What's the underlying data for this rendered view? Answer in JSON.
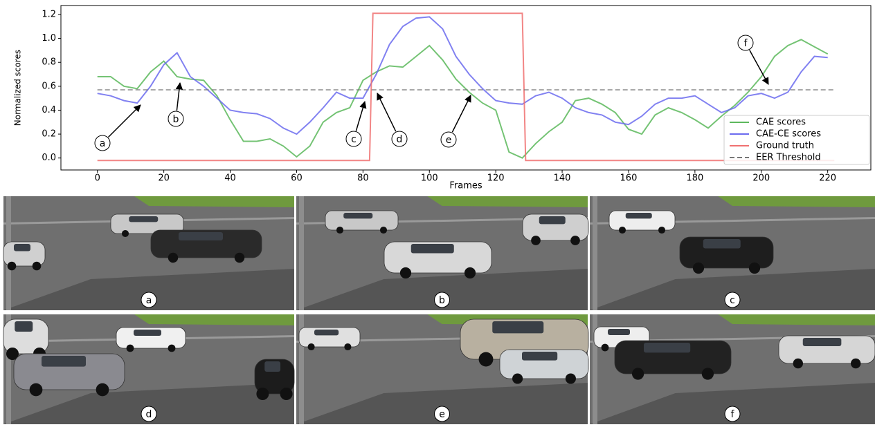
{
  "chart_data": {
    "type": "line",
    "y_label": "Normalized scores",
    "x_label": "Frames",
    "xlim": [
      -11,
      233
    ],
    "ylim": [
      -0.1,
      1.275
    ],
    "xticks": [
      0,
      20,
      40,
      60,
      80,
      100,
      120,
      140,
      160,
      180,
      200,
      220
    ],
    "yticks": [
      {
        "value": 0,
        "label": "0.0"
      },
      0.2,
      0.4,
      0.6,
      0.8,
      {
        "value": 1,
        "label": "1.0"
      },
      1.2
    ],
    "x": [
      0,
      4,
      8,
      12,
      16,
      20,
      24,
      28,
      32,
      36,
      40,
      44,
      48,
      52,
      56,
      60,
      64,
      68,
      72,
      76,
      80,
      84,
      88,
      92,
      96,
      100,
      104,
      108,
      112,
      116,
      120,
      124,
      128,
      132,
      136,
      140,
      144,
      148,
      152,
      156,
      160,
      164,
      168,
      172,
      176,
      180,
      184,
      188,
      192,
      196,
      200,
      204,
      208,
      212,
      216,
      220
    ],
    "series": [
      {
        "name": "CAE scores",
        "color": "#5cb85c",
        "values": [
          0.68,
          0.68,
          0.6,
          0.58,
          0.72,
          0.81,
          0.68,
          0.66,
          0.65,
          0.52,
          0.32,
          0.14,
          0.14,
          0.16,
          0.1,
          0.01,
          0.1,
          0.3,
          0.38,
          0.42,
          0.65,
          0.72,
          0.77,
          0.76,
          0.85,
          0.94,
          0.82,
          0.66,
          0.55,
          0.46,
          0.4,
          0.05,
          0.0,
          0.12,
          0.22,
          0.3,
          0.48,
          0.5,
          0.45,
          0.38,
          0.24,
          0.2,
          0.36,
          0.42,
          0.38,
          0.32,
          0.25,
          0.35,
          0.44,
          0.55,
          0.68,
          0.85,
          0.94,
          0.99,
          0.93,
          0.87
        ]
      },
      {
        "name": "CAE-CE scores",
        "color": "#6b6bef",
        "values": [
          0.54,
          0.52,
          0.48,
          0.46,
          0.6,
          0.78,
          0.88,
          0.68,
          0.6,
          0.5,
          0.4,
          0.38,
          0.37,
          0.33,
          0.25,
          0.2,
          0.3,
          0.42,
          0.55,
          0.5,
          0.5,
          0.7,
          0.95,
          1.1,
          1.17,
          1.18,
          1.08,
          0.85,
          0.7,
          0.58,
          0.48,
          0.46,
          0.45,
          0.52,
          0.55,
          0.5,
          0.42,
          0.38,
          0.36,
          0.3,
          0.28,
          0.35,
          0.45,
          0.5,
          0.5,
          0.52,
          0.45,
          0.38,
          0.42,
          0.52,
          0.54,
          0.5,
          0.55,
          0.72,
          0.85,
          0.84
        ]
      },
      {
        "name": "Ground truth",
        "color": "#f07070",
        "x": [
          0,
          82,
          83,
          128,
          129,
          222
        ],
        "values": [
          -0.02,
          -0.02,
          1.21,
          1.21,
          -0.02,
          -0.02
        ]
      },
      {
        "name": "EER Threshold",
        "color": "#777777",
        "dashed": true,
        "x": [
          0,
          222
        ],
        "values": [
          0.57,
          0.57
        ]
      }
    ],
    "annotations": [
      "a",
      "b",
      "c",
      "d",
      "e",
      "f"
    ],
    "legend": "lower right"
  },
  "panels": [
    "a",
    "b",
    "c",
    "d",
    "e",
    "f"
  ]
}
